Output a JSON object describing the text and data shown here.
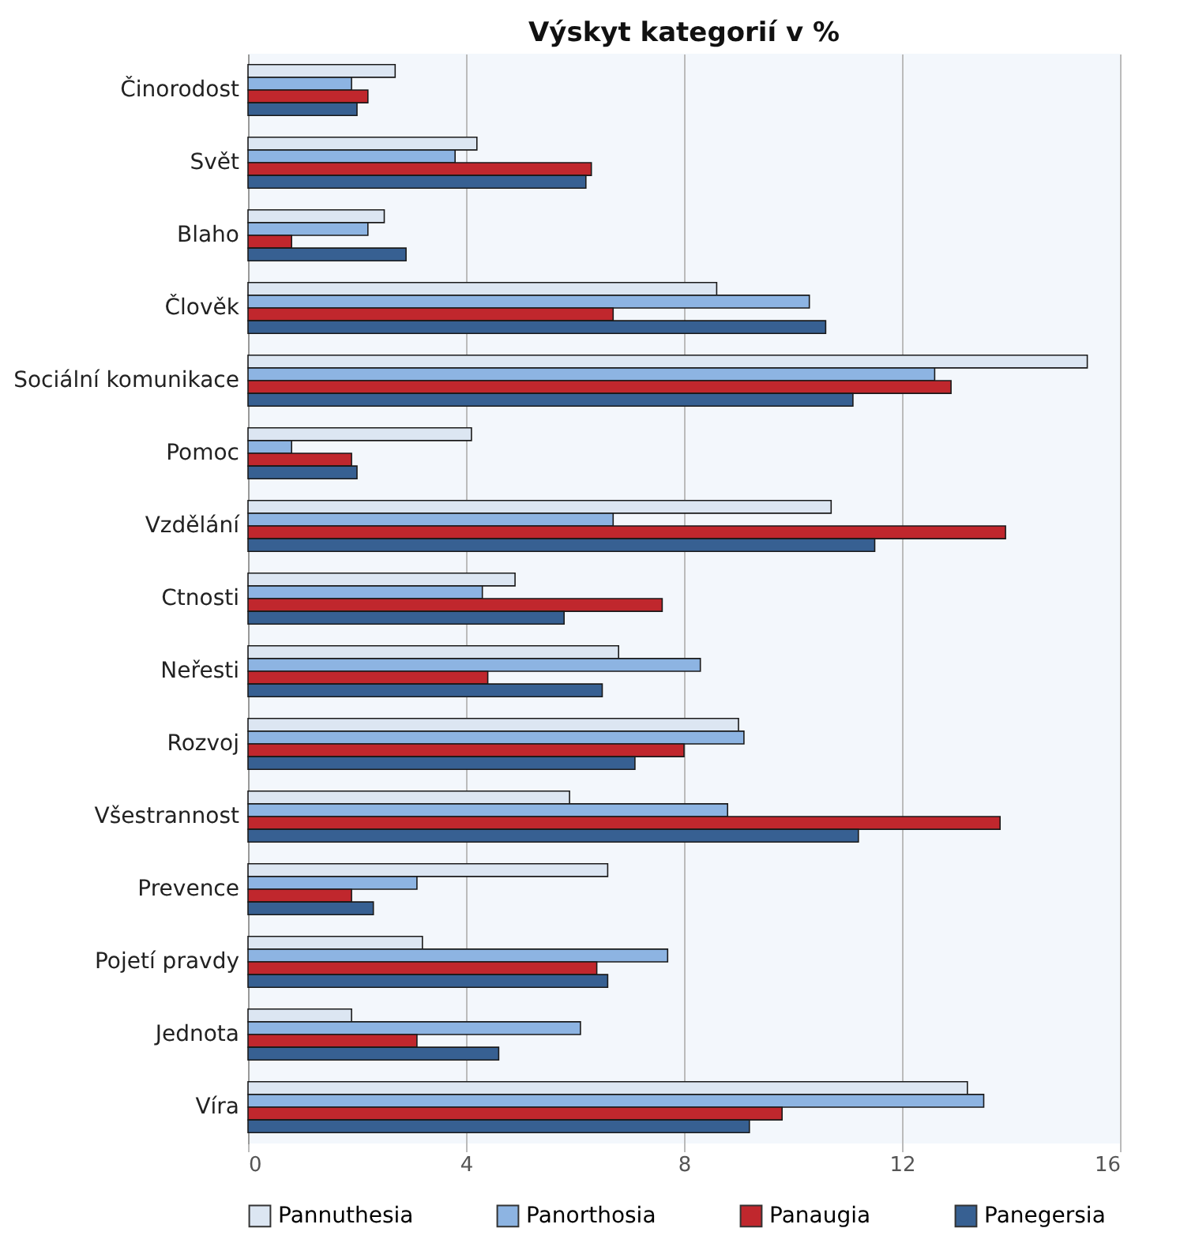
{
  "chart_data": {
    "type": "bar",
    "orientation": "horizontal",
    "title": "Výskyt kategorií v %",
    "categories": [
      "Činorodost",
      "Svět",
      "Blaho",
      "Člověk",
      "Sociální komunikace",
      "Pomoc",
      "Vzdělání",
      "Ctnosti",
      "Neřesti",
      "Rozvoj",
      "Všestrannost",
      "Prevence",
      "Pojetí pravdy",
      "Jednota",
      "Víra"
    ],
    "series": [
      {
        "name": "Pannuthesia",
        "color": "#dce6f2",
        "values": [
          2.7,
          4.2,
          2.5,
          8.6,
          15.4,
          4.1,
          10.7,
          4.9,
          6.8,
          9.0,
          5.9,
          6.6,
          3.2,
          1.9,
          13.2
        ]
      },
      {
        "name": "Panorthosia",
        "color": "#8db4e2",
        "values": [
          1.9,
          3.8,
          2.2,
          10.3,
          12.6,
          0.8,
          6.7,
          4.3,
          8.3,
          9.1,
          8.8,
          3.1,
          7.7,
          6.1,
          13.5
        ]
      },
      {
        "name": "Panaugia",
        "color": "#c0272d",
        "values": [
          2.2,
          6.3,
          0.8,
          6.7,
          12.9,
          1.9,
          13.9,
          7.6,
          4.4,
          8.0,
          13.8,
          1.9,
          6.4,
          3.1,
          9.8
        ]
      },
      {
        "name": "Panegersia",
        "color": "#376092",
        "values": [
          2.0,
          6.2,
          2.9,
          10.6,
          11.1,
          2.0,
          11.5,
          5.8,
          6.5,
          7.1,
          11.2,
          2.3,
          6.6,
          4.6,
          9.2
        ]
      }
    ],
    "xlim": [
      0,
      16
    ],
    "xticks": [
      0,
      4,
      8,
      12,
      16
    ],
    "grid": "x",
    "legend": "bottom"
  }
}
